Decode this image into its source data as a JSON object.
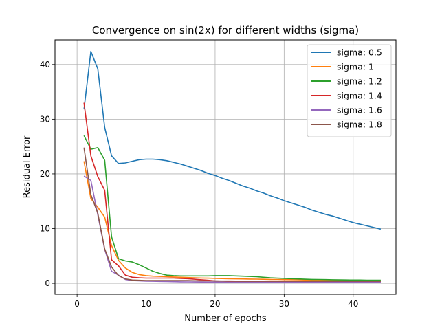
{
  "chart_data": {
    "type": "line",
    "title": "Convergence on sin(2x) for different widths (sigma)",
    "xlabel": "Number of epochs",
    "ylabel": "Residual Error",
    "xlim": [
      -3.2,
      46.2
    ],
    "ylim": [
      -2.0,
      44.5
    ],
    "xticks": [
      0,
      10,
      20,
      30,
      40
    ],
    "yticks": [
      0,
      10,
      20,
      30,
      40
    ],
    "grid": true,
    "legend_position": "top-right",
    "x": [
      1,
      2,
      3,
      4,
      5,
      6,
      7,
      8,
      9,
      10,
      11,
      12,
      13,
      14,
      15,
      16,
      17,
      18,
      19,
      20,
      21,
      22,
      23,
      24,
      25,
      26,
      27,
      28,
      29,
      30,
      31,
      32,
      33,
      34,
      35,
      36,
      37,
      38,
      39,
      40,
      41,
      42,
      43,
      44
    ],
    "series": [
      {
        "name": "sigma: 0.5",
        "color": "#1f77b4",
        "values": [
          31.8,
          42.4,
          39.2,
          28.5,
          23.3,
          21.9,
          22.0,
          22.3,
          22.6,
          22.7,
          22.7,
          22.6,
          22.4,
          22.1,
          21.8,
          21.4,
          21.0,
          20.6,
          20.1,
          19.7,
          19.2,
          18.8,
          18.3,
          17.8,
          17.4,
          16.9,
          16.5,
          16.0,
          15.6,
          15.1,
          14.7,
          14.3,
          13.9,
          13.4,
          13.0,
          12.6,
          12.3,
          11.9,
          11.5,
          11.1,
          10.8,
          10.5,
          10.2,
          9.9
        ]
      },
      {
        "name": "sigma: 1",
        "color": "#ff7f0e",
        "values": [
          22.3,
          15.5,
          13.9,
          12.1,
          6.9,
          4.2,
          2.8,
          2.0,
          1.6,
          1.4,
          1.3,
          1.25,
          1.2,
          1.15,
          1.1,
          1.05,
          1.0,
          0.97,
          0.94,
          0.9,
          0.87,
          0.84,
          0.82,
          0.8,
          0.78,
          0.76,
          0.74,
          0.72,
          0.7,
          0.68,
          0.66,
          0.64,
          0.62,
          0.6,
          0.58,
          0.56,
          0.55,
          0.54,
          0.53,
          0.52,
          0.51,
          0.5,
          0.5,
          0.5
        ]
      },
      {
        "name": "sigma: 1.2",
        "color": "#2ca02c",
        "values": [
          27.0,
          24.5,
          24.8,
          22.5,
          8.5,
          4.5,
          4.1,
          3.9,
          3.4,
          2.8,
          2.2,
          1.8,
          1.5,
          1.4,
          1.35,
          1.35,
          1.35,
          1.35,
          1.35,
          1.4,
          1.4,
          1.4,
          1.35,
          1.3,
          1.25,
          1.2,
          1.1,
          1.0,
          0.95,
          0.9,
          0.85,
          0.8,
          0.75,
          0.72,
          0.7,
          0.68,
          0.65,
          0.63,
          0.62,
          0.6,
          0.6,
          0.58,
          0.58,
          0.58
        ]
      },
      {
        "name": "sigma: 1.4",
        "color": "#d62728",
        "values": [
          33.0,
          23.3,
          19.5,
          17.0,
          4.3,
          3.2,
          1.5,
          1.1,
          1.0,
          0.95,
          0.95,
          0.95,
          0.95,
          0.95,
          0.9,
          0.85,
          0.75,
          0.65,
          0.55,
          0.45,
          0.4,
          0.35,
          0.32,
          0.3,
          0.3,
          0.3,
          0.3,
          0.3,
          0.3,
          0.3,
          0.3,
          0.3,
          0.3,
          0.3,
          0.3,
          0.3,
          0.3,
          0.3,
          0.3,
          0.3,
          0.3,
          0.3,
          0.3,
          0.3
        ]
      },
      {
        "name": "sigma: 1.6",
        "color": "#9467bd",
        "values": [
          19.6,
          18.8,
          12.5,
          6.2,
          2.2,
          1.5,
          0.7,
          0.5,
          0.45,
          0.4,
          0.38,
          0.35,
          0.32,
          0.3,
          0.28,
          0.26,
          0.25,
          0.24,
          0.23,
          0.22,
          0.21,
          0.2,
          0.2,
          0.2,
          0.2,
          0.2,
          0.2,
          0.2,
          0.2,
          0.2,
          0.2,
          0.2,
          0.2,
          0.2,
          0.2,
          0.2,
          0.2,
          0.2,
          0.2,
          0.2,
          0.2,
          0.2,
          0.2,
          0.2
        ]
      },
      {
        "name": "sigma: 1.8",
        "color": "#8c564b",
        "values": [
          24.8,
          16.2,
          12.8,
          6.3,
          3.0,
          1.4,
          0.8,
          0.6,
          0.55,
          0.5,
          0.5,
          0.5,
          0.5,
          0.5,
          0.5,
          0.5,
          0.48,
          0.46,
          0.45,
          0.44,
          0.43,
          0.42,
          0.41,
          0.4,
          0.4,
          0.4,
          0.4,
          0.4,
          0.4,
          0.4,
          0.4,
          0.4,
          0.4,
          0.4,
          0.4,
          0.4,
          0.4,
          0.4,
          0.4,
          0.4,
          0.4,
          0.4,
          0.4,
          0.4
        ]
      }
    ]
  }
}
